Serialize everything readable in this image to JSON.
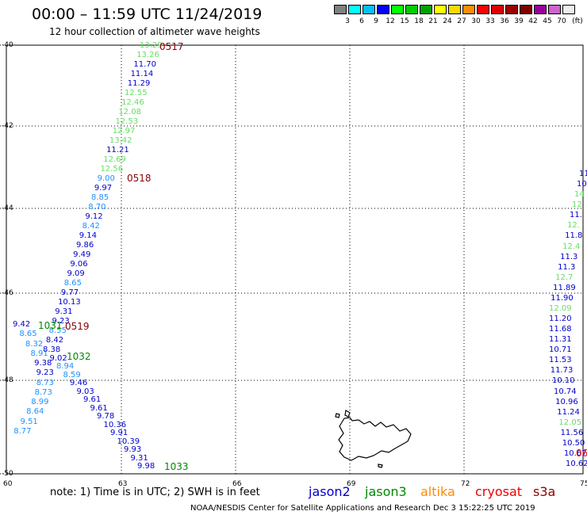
{
  "header": {
    "title": "00:00 – 11:59 UTC 11/24/2019",
    "subtitle": "12 hour collection of altimeter wave heights"
  },
  "legend": {
    "unit": "(ft)",
    "colors": [
      "#808080",
      "#00ffff",
      "#00bfff",
      "#0000ff",
      "#00ff00",
      "#00cc00",
      "#00a000",
      "#ffff00",
      "#ffd700",
      "#ff8c00",
      "#ff0000",
      "#dd0000",
      "#990000",
      "#7a0000",
      "#990099",
      "#cc66cc",
      "#eeeeee"
    ],
    "labels": [
      "3",
      "6",
      "9",
      "12",
      "15",
      "18",
      "21",
      "24",
      "27",
      "30",
      "33",
      "36",
      "39",
      "42",
      "45",
      "70"
    ]
  },
  "axes": {
    "lat_labels": [
      "-40",
      "-42",
      "-44",
      "-46",
      "-48",
      "-50"
    ],
    "lon_labels": [
      "60",
      "63",
      "66",
      "69",
      "72",
      "75"
    ]
  },
  "satellite_colors": {
    "jason2": "#0000cc",
    "jason3": "#008800",
    "altika": "#ff8c00",
    "cryosat": "#ee0000",
    "s3a": "#880000",
    "light_green": "#66dd66",
    "light_blue": "#1e90ff"
  },
  "tracks": {
    "left": [
      {
        "v": "13.29",
        "c": "light_green"
      },
      {
        "v": "13.26",
        "c": "light_green"
      },
      {
        "v": "11.70",
        "c": "jason2"
      },
      {
        "v": "11.14",
        "c": "jason2"
      },
      {
        "v": "11.29",
        "c": "jason2"
      },
      {
        "v": "12.55",
        "c": "light_green"
      },
      {
        "v": "12.46",
        "c": "light_green"
      },
      {
        "v": "12.08",
        "c": "light_green"
      },
      {
        "v": "12.53",
        "c": "light_green"
      },
      {
        "v": "12.97",
        "c": "light_green"
      },
      {
        "v": "13.42",
        "c": "light_green"
      },
      {
        "v": "11.21",
        "c": "jason2"
      },
      {
        "v": "12.69",
        "c": "light_green"
      },
      {
        "v": "12.56",
        "c": "light_green"
      },
      {
        "v": "9.00",
        "c": "light_blue"
      },
      {
        "v": "9.97",
        "c": "jason2"
      },
      {
        "v": "8.85",
        "c": "light_blue"
      },
      {
        "v": "8.70",
        "c": "light_blue"
      },
      {
        "v": "9.12",
        "c": "jason2"
      },
      {
        "v": "8.42",
        "c": "light_blue"
      },
      {
        "v": "9.14",
        "c": "jason2"
      },
      {
        "v": "9.86",
        "c": "jason2"
      },
      {
        "v": "9.49",
        "c": "jason2"
      },
      {
        "v": "9.06",
        "c": "jason2"
      },
      {
        "v": "9.09",
        "c": "jason2"
      },
      {
        "v": "8.65",
        "c": "light_blue"
      },
      {
        "v": "9.77",
        "c": "jason2"
      },
      {
        "v": "10.13",
        "c": "jason2"
      },
      {
        "v": "9.31",
        "c": "jason2"
      },
      {
        "v": "9.23",
        "c": "jason2"
      },
      {
        "v": "8.55",
        "c": "light_blue"
      },
      {
        "v": "8.42",
        "c": "jason2"
      },
      {
        "v": "8.38",
        "c": "jason2"
      },
      {
        "v": "9.02",
        "c": "jason2"
      },
      {
        "v": "8.94",
        "c": "light_blue"
      },
      {
        "v": "8.59",
        "c": "light_blue"
      },
      {
        "v": "9.46",
        "c": "jason2"
      },
      {
        "v": "9.03",
        "c": "jason2"
      },
      {
        "v": "9.61",
        "c": "jason2"
      },
      {
        "v": "9.61",
        "c": "jason2"
      },
      {
        "v": "9.78",
        "c": "jason2"
      },
      {
        "v": "10.36",
        "c": "jason2"
      },
      {
        "v": "9.91",
        "c": "jason2"
      },
      {
        "v": "10.39",
        "c": "jason2"
      },
      {
        "v": "9.93",
        "c": "jason2"
      },
      {
        "v": "9.31",
        "c": "jason2"
      },
      {
        "v": "9.98",
        "c": "jason2"
      }
    ],
    "left2": [
      {
        "v": "9.42",
        "c": "jason2"
      },
      {
        "v": "8.65",
        "c": "light_blue"
      },
      {
        "v": "8.32",
        "c": "light_blue"
      },
      {
        "v": "8.91",
        "c": "light_blue"
      },
      {
        "v": "9.38",
        "c": "jason2"
      },
      {
        "v": "9.23",
        "c": "jason2"
      },
      {
        "v": "8.73",
        "c": "light_blue"
      },
      {
        "v": "8.73",
        "c": "light_blue"
      },
      {
        "v": "8.99",
        "c": "light_blue"
      },
      {
        "v": "8.64",
        "c": "light_blue"
      },
      {
        "v": "9.51",
        "c": "light_blue"
      },
      {
        "v": "8.77",
        "c": "light_blue"
      }
    ],
    "right": [
      {
        "v": "11",
        "c": "jason2"
      },
      {
        "v": "10",
        "c": "jason2"
      },
      {
        "v": "14",
        "c": "light_green"
      },
      {
        "v": "12",
        "c": "light_green"
      },
      {
        "v": "11.",
        "c": "jason2"
      },
      {
        "v": "12.",
        "c": "light_green"
      },
      {
        "v": "11.8",
        "c": "jason2"
      },
      {
        "v": "12.4",
        "c": "light_green"
      },
      {
        "v": "11.3",
        "c": "jason2"
      },
      {
        "v": "11.3",
        "c": "jason2"
      },
      {
        "v": "12.7",
        "c": "light_green"
      },
      {
        "v": "11.89",
        "c": "jason2"
      },
      {
        "v": "11.90",
        "c": "jason2"
      },
      {
        "v": "12.09",
        "c": "light_green"
      },
      {
        "v": "11.20",
        "c": "jason2"
      },
      {
        "v": "11.68",
        "c": "jason2"
      },
      {
        "v": "11.31",
        "c": "jason2"
      },
      {
        "v": "10.71",
        "c": "jason2"
      },
      {
        "v": "11.53",
        "c": "jason2"
      },
      {
        "v": "11.73",
        "c": "jason2"
      },
      {
        "v": "10.10",
        "c": "jason2"
      },
      {
        "v": "10.74",
        "c": "jason2"
      },
      {
        "v": "10.96",
        "c": "jason2"
      },
      {
        "v": "11.24",
        "c": "jason2"
      },
      {
        "v": "12.05",
        "c": "light_green"
      },
      {
        "v": "11.56",
        "c": "jason2"
      },
      {
        "v": "10.50",
        "c": "jason2"
      },
      {
        "v": "10.67",
        "c": "jason2"
      },
      {
        "v": "10.62",
        "c": "jason2"
      }
    ]
  },
  "time_labels": [
    {
      "v": "0517",
      "c": "s3a"
    },
    {
      "v": "0518",
      "c": "s3a"
    },
    {
      "v": "0519",
      "c": "s3a"
    },
    {
      "v": "1031",
      "c": "jason3"
    },
    {
      "v": "1032",
      "c": "jason3"
    },
    {
      "v": "1033",
      "c": "jason3"
    },
    {
      "v": "06",
      "c": "cryosat"
    }
  ],
  "footer": {
    "note": "note:  1) Time is in UTC;  2) SWH is in feet",
    "satellites": [
      {
        "name": "jason2",
        "c": "jason2"
      },
      {
        "name": "jason3",
        "c": "jason3"
      },
      {
        "name": "altika",
        "c": "altika"
      },
      {
        "name": "cryosat",
        "c": "cryosat"
      },
      {
        "name": "s3a",
        "c": "s3a"
      }
    ],
    "credit": "NOAA/NESDIS Center for Satellite Applications and Research    Dec  3 15:22:25 UTC 2019"
  }
}
